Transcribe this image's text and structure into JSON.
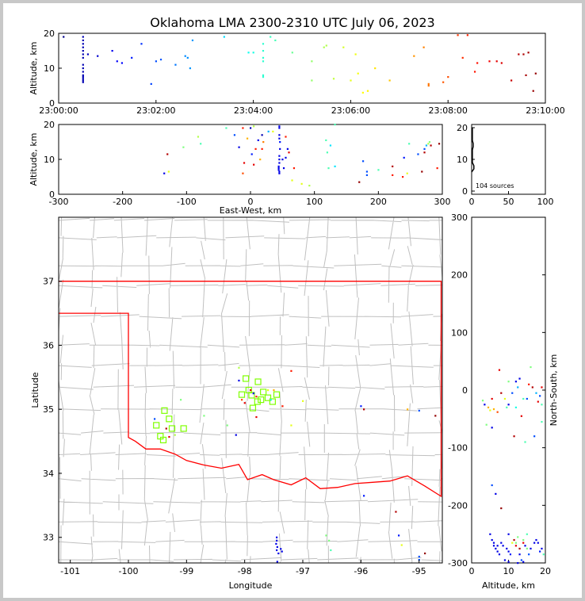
{
  "chart_data": {
    "type": "scatter",
    "title": "Oklahoma LMA 2300-2310 UTC July 06, 2023",
    "panels": {
      "time_altitude": {
        "ylabel": "Altitude, km",
        "x_ticks": [
          "23:00:00",
          "23:02:00",
          "23:04:00",
          "23:06:00",
          "23:08:00",
          "23:10:00"
        ],
        "x_range_minutes": [
          0,
          10
        ],
        "ylim": [
          0,
          20
        ],
        "y_ticks": [
          "0",
          "10",
          "20"
        ]
      },
      "ew_altitude": {
        "xlabel": "East-West, km",
        "ylabel": "Altitude, km",
        "xlim": [
          -300,
          300
        ],
        "x_ticks": [
          "-300",
          "-200",
          "-100",
          "0",
          "100",
          "200",
          "300"
        ],
        "ylim": [
          0,
          20
        ],
        "y_ticks": [
          "0",
          "10",
          "20"
        ]
      },
      "histogram": {
        "xlim": [
          0,
          100
        ],
        "x_ticks": [
          "0",
          "50",
          "100"
        ],
        "ylim": [
          0,
          20
        ],
        "y_ticks": [
          "0",
          "10",
          "20"
        ],
        "annotation": "104 sources"
      },
      "map": {
        "xlabel": "Longitude",
        "ylabel": "Latitude",
        "xlim": [
          -101.2,
          -94.6
        ],
        "ylim": [
          32.6,
          38.0
        ],
        "x_ticks": [
          "-101",
          "-100",
          "-99",
          "-98",
          "-97",
          "-96",
          "-95"
        ],
        "y_ticks": [
          "33",
          "34",
          "35",
          "36",
          "37"
        ]
      },
      "altitude_ns": {
        "xlabel": "Altitude, km",
        "ylabel": "North-South, km",
        "xlim": [
          0,
          20
        ],
        "x_ticks": [
          "0",
          "10",
          "20"
        ],
        "ylim": [
          -300,
          300
        ],
        "y_ticks": [
          "-300",
          "-200",
          "-100",
          "0",
          "100",
          "200",
          "300"
        ]
      }
    },
    "stations": [
      [
        -97.98,
        35.48
      ],
      [
        -97.77,
        35.43
      ],
      [
        -97.93,
        35.3
      ],
      [
        -97.88,
        35.22
      ],
      [
        -98.05,
        35.23
      ],
      [
        -97.68,
        35.27
      ],
      [
        -97.6,
        35.18
      ],
      [
        -97.72,
        35.15
      ],
      [
        -97.52,
        35.12
      ],
      [
        -97.45,
        35.23
      ],
      [
        -97.86,
        35.02
      ],
      [
        -97.78,
        35.12
      ],
      [
        -99.38,
        34.98
      ],
      [
        -99.3,
        34.85
      ],
      [
        -99.52,
        34.75
      ],
      [
        -99.25,
        34.7
      ],
      [
        -99.05,
        34.7
      ],
      [
        -99.45,
        34.58
      ],
      [
        -99.4,
        34.52
      ]
    ]
  }
}
